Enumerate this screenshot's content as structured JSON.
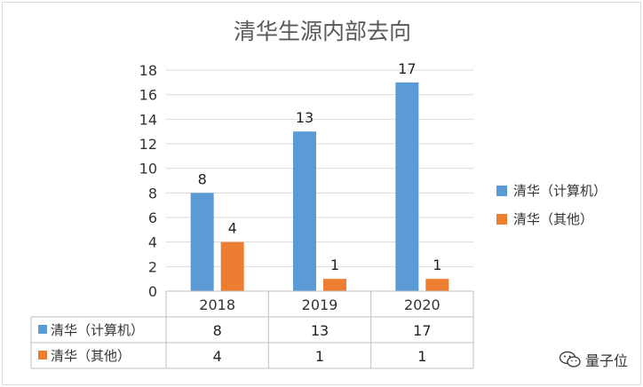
{
  "chart_data": {
    "type": "bar",
    "title": "清华生源内部去向",
    "categories": [
      "2018",
      "2019",
      "2020"
    ],
    "series": [
      {
        "name": "清华（计算机）",
        "values": [
          8,
          13,
          17
        ],
        "color": "#5b9bd5"
      },
      {
        "name": "清华（其他）",
        "values": [
          4,
          1,
          1
        ],
        "color": "#ed7d31"
      }
    ],
    "ylim": [
      0,
      18
    ],
    "yticks": [
      0,
      2,
      4,
      6,
      8,
      10,
      12,
      14,
      16,
      18
    ],
    "grid": true,
    "legend": "right",
    "data_table": true
  },
  "watermark": {
    "text": "量子位",
    "icon": "wechat-icon"
  }
}
